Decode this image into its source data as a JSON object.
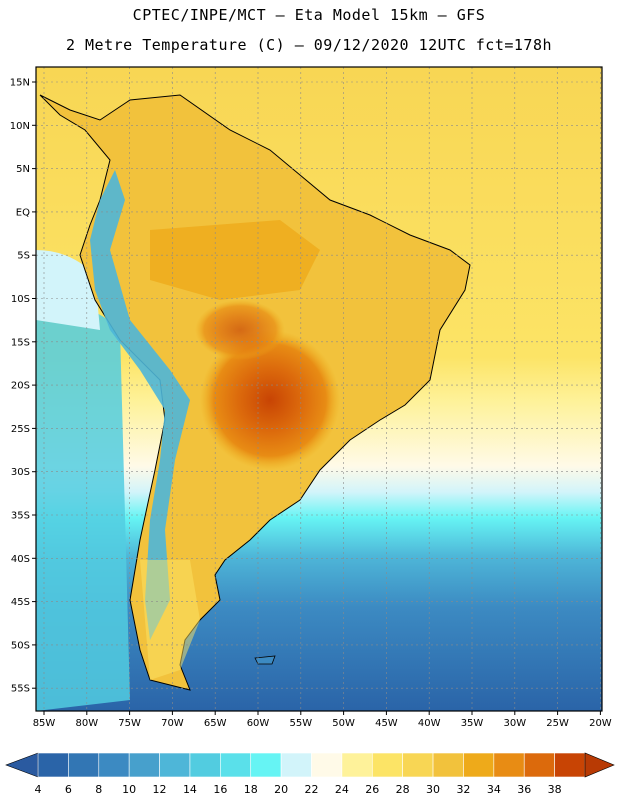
{
  "header": {
    "line1": "CPTEC/INPE/MCT –  Eta Model 15km – GFS",
    "line2": "2 Metre Temperature (C) – 09/12/2020 12UTC fct=178h"
  },
  "map": {
    "region": "South America",
    "variable": "2 Metre Temperature",
    "units": "C",
    "lat_labels": [
      "15N",
      "10N",
      "5N",
      "EQ",
      "5S",
      "10S",
      "15S",
      "20S",
      "25S",
      "30S",
      "35S",
      "40S",
      "45S",
      "50S",
      "55S"
    ],
    "lon_labels": [
      "85W",
      "80W",
      "75W",
      "70W",
      "65W",
      "60W",
      "55W",
      "50W",
      "45W",
      "40W",
      "35W",
      "30W",
      "25W",
      "20W"
    ]
  },
  "colorbar": {
    "levels": [
      "4",
      "6",
      "8",
      "10",
      "12",
      "14",
      "16",
      "18",
      "20",
      "22",
      "24",
      "26",
      "28",
      "30",
      "32",
      "34",
      "36",
      "38"
    ],
    "colors": [
      "#2a64a8",
      "#3276b4",
      "#3c8ac2",
      "#47a0cc",
      "#4eb6d8",
      "#52cce0",
      "#5ae0ea",
      "#66f4f4",
      "#d2f4fa",
      "#fffae8",
      "#fef29a",
      "#fce466",
      "#f8d654",
      "#f2c23c",
      "#eeaa1a",
      "#e88c14",
      "#dc6a0c",
      "#c84404"
    ],
    "end_low_color": "#2a5aa0",
    "end_high_color": "#b83a04"
  }
}
